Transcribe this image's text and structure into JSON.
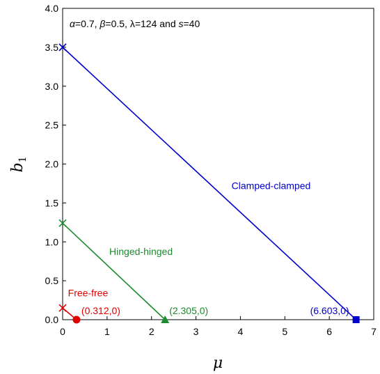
{
  "chart_data": {
    "type": "line",
    "xlabel": "μ",
    "ylabel_main": "b",
    "ylabel_sub": "1",
    "xlim": [
      0,
      7
    ],
    "ylim": [
      0,
      4.0
    ],
    "x_ticks": [
      "0",
      "1",
      "2",
      "3",
      "4",
      "5",
      "6",
      "7"
    ],
    "y_ticks": [
      "0.0",
      "0.5",
      "1.0",
      "1.5",
      "2.0",
      "2.5",
      "3.0",
      "3.5",
      "4.0"
    ],
    "grid": false,
    "parameters_text": {
      "alpha": "α",
      "alpha_val": "=0.7, ",
      "beta": "β",
      "beta_val": "=0.5, λ=124 and ",
      "s": "s",
      "s_val": "=40"
    },
    "series": [
      {
        "name": "Clamped-clamped",
        "color": "#0000cc",
        "x": [
          0,
          6.603
        ],
        "y": [
          3.5,
          0
        ],
        "start_marker": "x",
        "end_marker": "square",
        "end_label": "(6.603,0)"
      },
      {
        "name": "Hinged-hinged",
        "color": "#1a8c2e",
        "x": [
          0,
          2.305
        ],
        "y": [
          1.24,
          0
        ],
        "start_marker": "x",
        "end_marker": "triangle",
        "end_label": "(2.305,0)"
      },
      {
        "name": "Free-free",
        "color": "#e00000",
        "x": [
          0,
          0.312
        ],
        "y": [
          0.15,
          0
        ],
        "start_marker": "x",
        "end_marker": "circle",
        "end_label": "(0.312,0)"
      }
    ]
  }
}
